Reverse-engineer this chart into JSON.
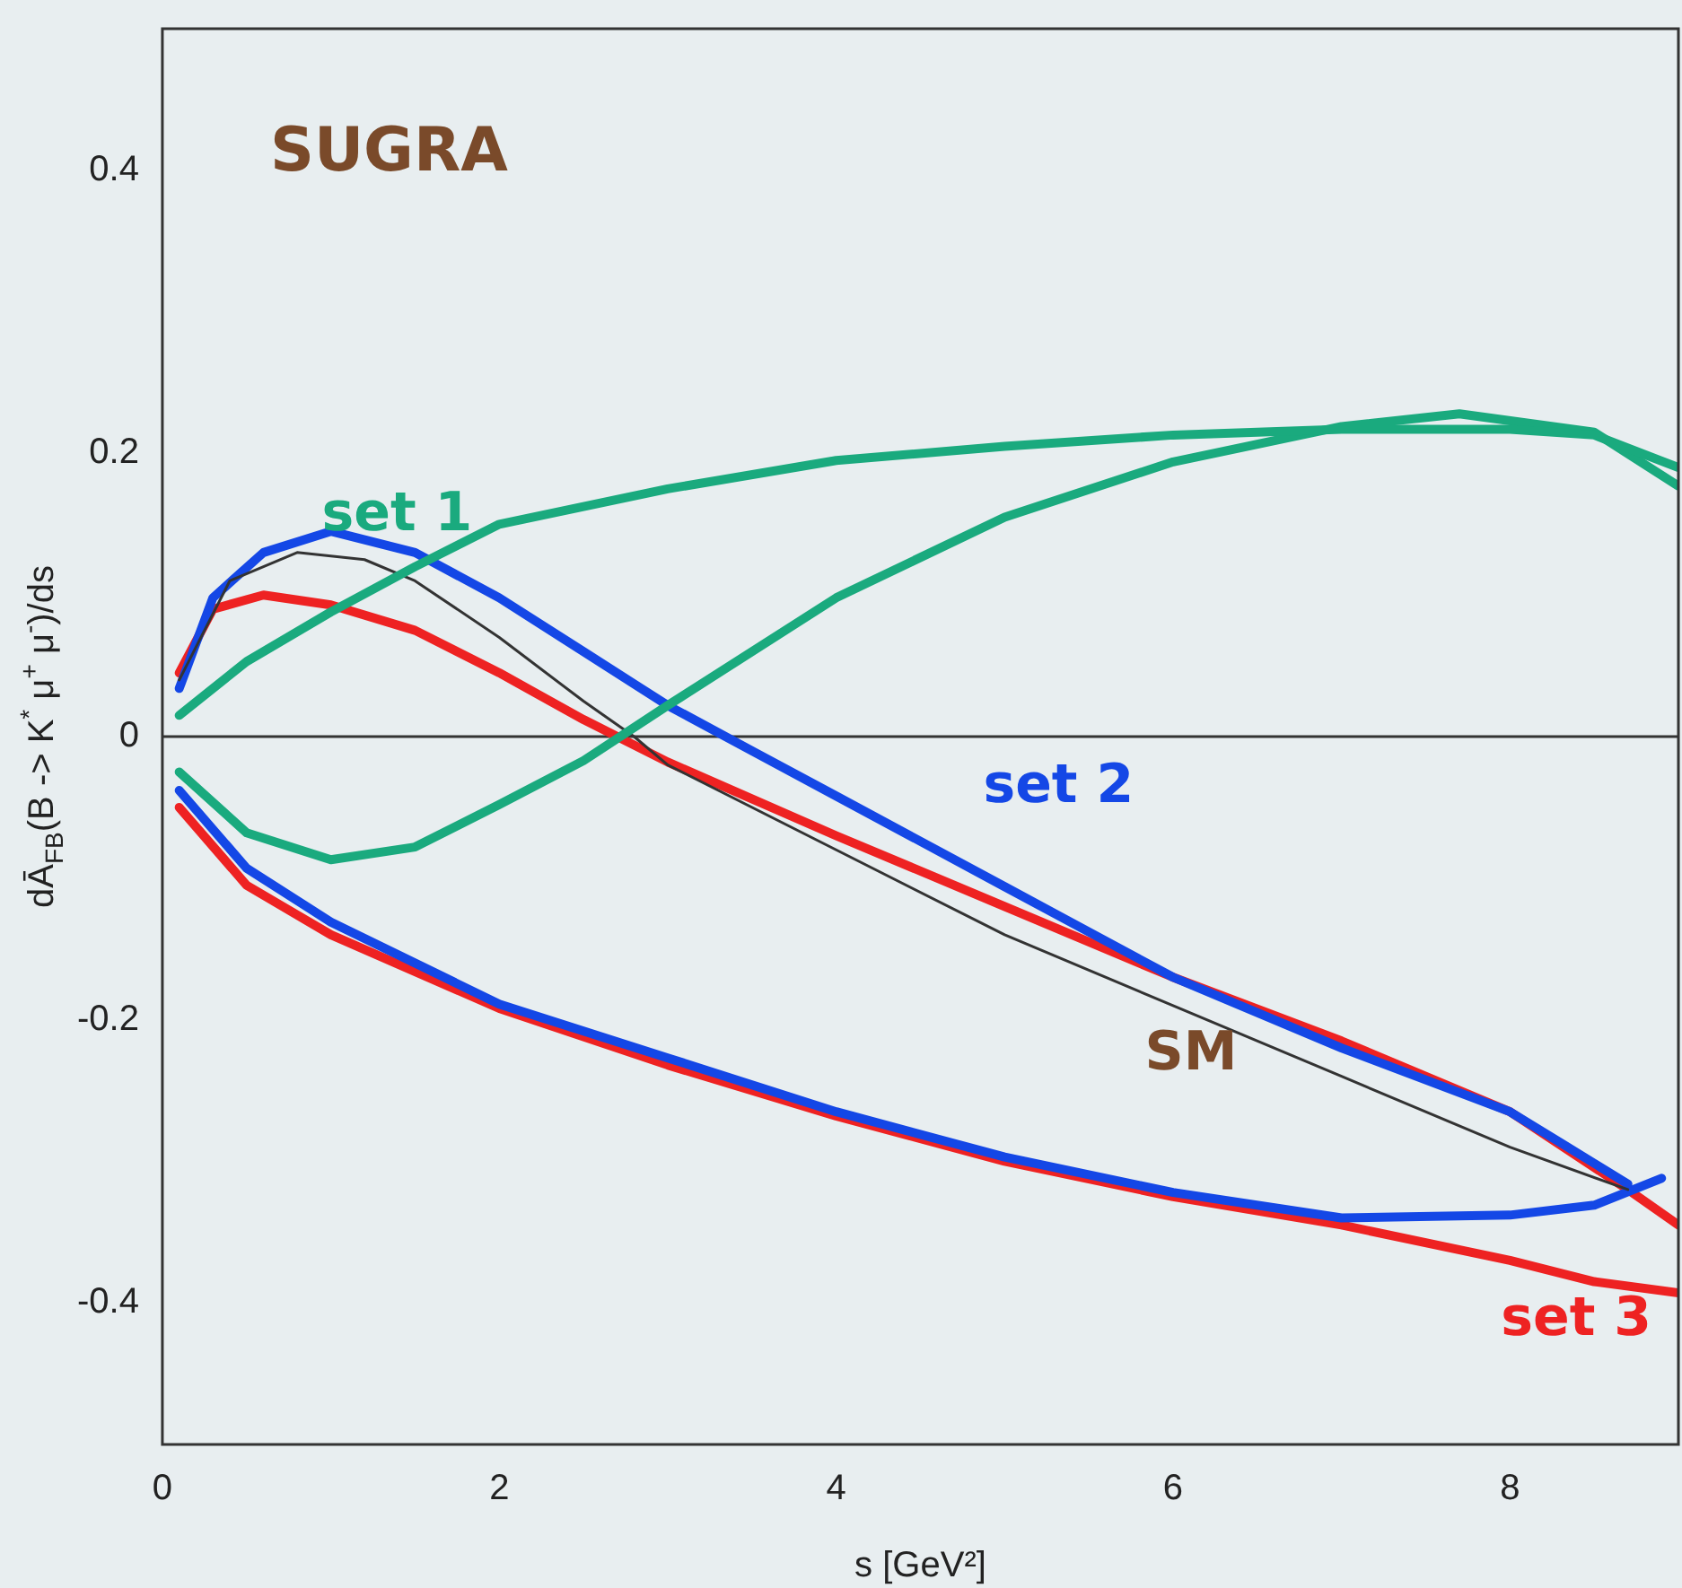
{
  "chart_data": {
    "type": "line",
    "xlabel": "s [GeV²]",
    "ylabel": "dĀ$_{FB}$(B -> K$^{*}$ μ$^{+}$ μ$^{-}$)/ds",
    "annotations": [
      "SUGRA"
    ],
    "xlim": [
      0,
      9
    ],
    "xticks": [
      0,
      2,
      4,
      6,
      8
    ],
    "ylim": [
      -0.5,
      0.5
    ],
    "yticks": [
      -0.4,
      -0.2,
      0,
      0.2,
      0.4
    ],
    "grid": false,
    "legend": false,
    "marker": "none",
    "line_style": "solid",
    "ref_lines": [
      {
        "axis": "y",
        "value": 0,
        "color": "#333333"
      }
    ],
    "series": [
      {
        "name": "set 1",
        "color": "#1aaa7e",
        "x": [
          0.1,
          0.5,
          1,
          1.5,
          2,
          3,
          4,
          5,
          6,
          7,
          8,
          8.5,
          9
        ],
        "values": [
          0.015,
          0.053,
          0.088,
          0.12,
          0.15,
          0.175,
          0.195,
          0.205,
          0.213,
          0.217,
          0.217,
          0.213,
          0.19
        ]
      },
      {
        "color": "#1aaa7e",
        "x": [
          0.1,
          0.5,
          1,
          1.5,
          2,
          2.5,
          3,
          4,
          5,
          6,
          7,
          7.7,
          8.5,
          9
        ],
        "values": [
          -0.025,
          -0.068,
          -0.087,
          -0.078,
          -0.048,
          -0.017,
          0.022,
          0.098,
          0.155,
          0.194,
          0.219,
          0.228,
          0.215,
          0.177
        ]
      },
      {
        "name": "SM",
        "color": "#333333",
        "x": [
          0.1,
          0.4,
          0.8,
          1.2,
          1.5,
          2,
          2.5,
          2.8,
          3,
          4,
          5,
          6,
          7,
          8,
          8.7
        ],
        "values": [
          0.04,
          0.11,
          0.13,
          0.125,
          0.11,
          0.07,
          0.025,
          0,
          -0.02,
          -0.08,
          -0.14,
          -0.19,
          -0.24,
          -0.29,
          -0.32
        ]
      },
      {
        "name": "set 2",
        "color": "#1447e6",
        "x": [
          0.1,
          0.3,
          0.6,
          1,
          1.5,
          2,
          2.5,
          3,
          3.5,
          4,
          5,
          6,
          7,
          8,
          8.7
        ],
        "values": [
          0.034,
          0.098,
          0.13,
          0.145,
          0.13,
          0.098,
          0.06,
          0.022,
          -0.01,
          -0.042,
          -0.106,
          -0.17,
          -0.22,
          -0.265,
          -0.316
        ]
      },
      {
        "color": "#1447e6",
        "x": [
          0.1,
          0.5,
          1,
          2,
          3,
          4,
          5,
          6,
          7,
          8,
          8.5,
          8.9
        ],
        "values": [
          -0.038,
          -0.093,
          -0.131,
          -0.189,
          -0.227,
          -0.265,
          -0.297,
          -0.322,
          -0.34,
          -0.338,
          -0.331,
          -0.312
        ]
      },
      {
        "color": "#ee2222",
        "x": [
          0.1,
          0.3,
          0.6,
          1,
          1.5,
          2,
          2.5,
          3,
          4,
          5,
          6,
          7,
          8,
          8.7,
          9
        ],
        "values": [
          0.045,
          0.09,
          0.1,
          0.093,
          0.075,
          0.045,
          0.012,
          -0.018,
          -0.07,
          -0.12,
          -0.17,
          -0.215,
          -0.265,
          -0.32,
          -0.345
        ]
      },
      {
        "name": "set 3",
        "color": "#ee2222",
        "x": [
          0.1,
          0.5,
          1,
          2,
          3,
          4,
          5,
          6,
          7,
          8,
          8.5,
          9
        ],
        "values": [
          -0.05,
          -0.105,
          -0.14,
          -0.192,
          -0.232,
          -0.268,
          -0.3,
          -0.325,
          -0.345,
          -0.37,
          -0.385,
          -0.393
        ]
      }
    ]
  }
}
